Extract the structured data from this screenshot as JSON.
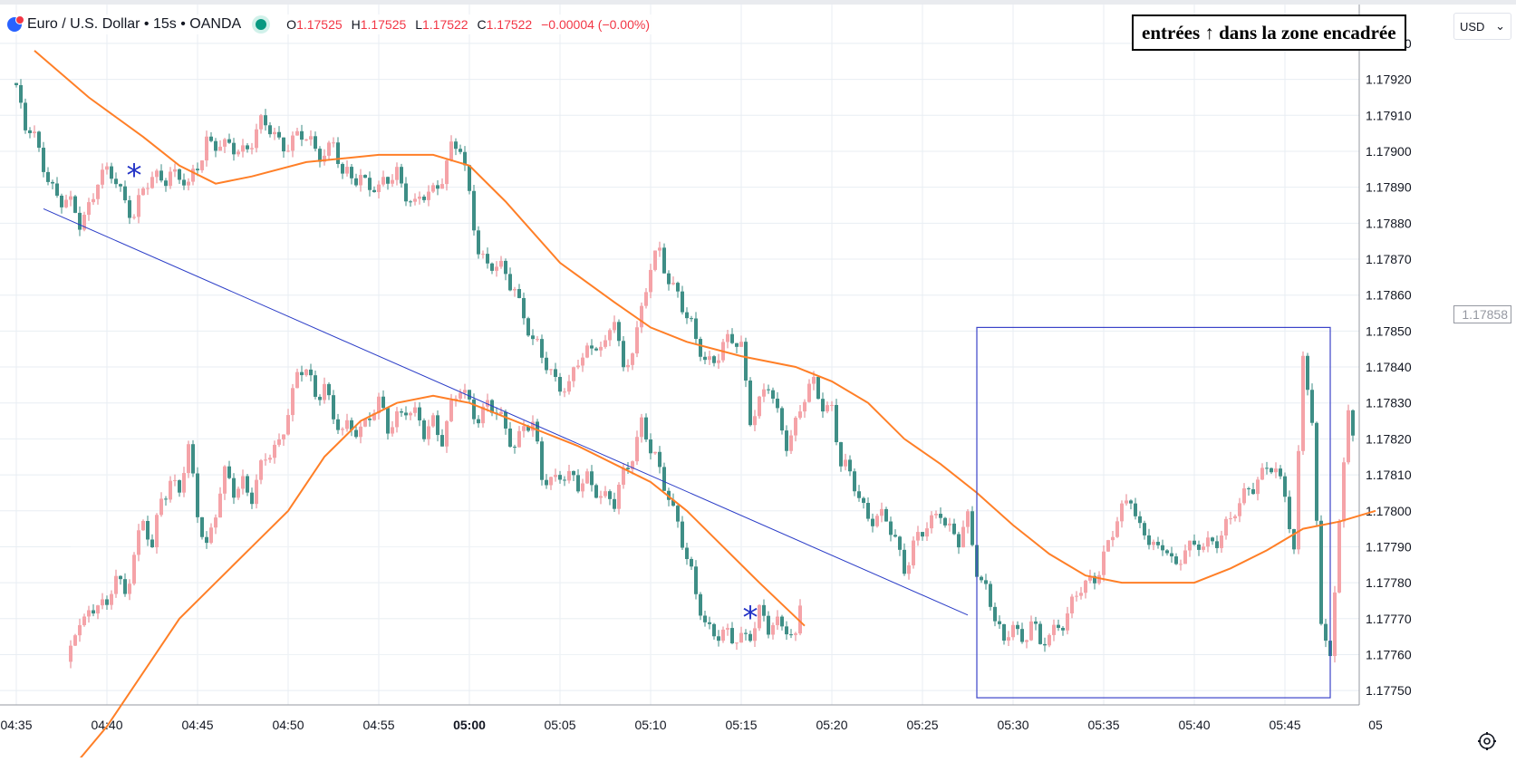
{
  "legend": {
    "symbol": "Euro / U.S. Dollar • 15s • OANDA",
    "o_label": "O",
    "o": "1.17525",
    "h_label": "H",
    "h": "1.17525",
    "l_label": "L",
    "l": "1.17522",
    "c_label": "C",
    "c": "1.17522",
    "change": "−0.00004 (−0.00%)"
  },
  "annotation": {
    "text": "entrées ↑ dans la zone encadrée"
  },
  "price_scale": {
    "currency": "USD",
    "last_price": "1.17858"
  },
  "colors": {
    "up": "#f5a3a8",
    "up_wick": "#e57f88",
    "down": "#3e8e86",
    "ma": "#ff7f27",
    "trendline": "#2a3cc7",
    "box": "#3b44c9",
    "marker": "#2232c6",
    "grid": "#e8eef3",
    "axis_text": "#131722"
  },
  "chart_data": {
    "type": "candlestick",
    "instrument": "Euro / U.S. Dollar",
    "interval": "15s",
    "source": "OANDA",
    "x_ticks": [
      "04:35",
      "04:40",
      "04:45",
      "04:50",
      "04:55",
      "05:00",
      "05:05",
      "05:10",
      "05:15",
      "05:20",
      "05:25",
      "05:30",
      "05:35",
      "05:40",
      "05:45",
      "05"
    ],
    "x_bold": [
      "05:00"
    ],
    "y_ticks": [
      "1.17750",
      "1.17760",
      "1.17770",
      "1.17780",
      "1.17790",
      "1.17800",
      "1.17810",
      "1.17820",
      "1.17830",
      "1.17840",
      "1.17850",
      "1.17860",
      "1.17870",
      "1.17880",
      "1.17890",
      "1.17900",
      "1.17910",
      "1.17920",
      "1.17930"
    ],
    "ylim": [
      1.17745,
      1.17932
    ],
    "x_time_range": [
      "04:35",
      "05:50"
    ],
    "main_close_path": [
      [
        "04:35:00",
        1.17919
      ],
      [
        "04:35:30",
        1.17906
      ],
      [
        "04:36:30",
        1.17897
      ],
      [
        "04:37:30",
        1.17886
      ],
      [
        "04:38:30",
        1.1788
      ],
      [
        "04:39:30",
        1.17893
      ],
      [
        "04:40:30",
        1.17891
      ],
      [
        "04:41:30",
        1.17884
      ],
      [
        "04:42:30",
        1.17891
      ],
      [
        "04:43:30",
        1.17896
      ],
      [
        "04:44:30",
        1.17888
      ],
      [
        "04:45:30",
        1.17905
      ],
      [
        "04:46:30",
        1.17899
      ],
      [
        "04:47:30",
        1.17902
      ],
      [
        "04:48:30",
        1.17906
      ],
      [
        "04:49:30",
        1.17904
      ],
      [
        "04:50:30",
        1.17903
      ],
      [
        "04:51:30",
        1.17901
      ],
      [
        "04:52:30",
        1.17902
      ],
      [
        "04:53:00",
        1.17891
      ],
      [
        "04:54:00",
        1.17895
      ],
      [
        "04:55:00",
        1.17887
      ],
      [
        "04:56:00",
        1.17896
      ],
      [
        "04:57:00",
        1.17883
      ],
      [
        "04:58:00",
        1.1789
      ],
      [
        "04:59:00",
        1.179
      ],
      [
        "04:59:30",
        1.17899
      ],
      [
        "05:00:00",
        1.17888
      ],
      [
        "05:00:30",
        1.17875
      ],
      [
        "05:01:00",
        1.17868
      ],
      [
        "05:01:30",
        1.17866
      ],
      [
        "05:02:30",
        1.17864
      ],
      [
        "05:03:00",
        1.17855
      ],
      [
        "05:03:30",
        1.17845
      ],
      [
        "05:04:00",
        1.17842
      ],
      [
        "05:04:30",
        1.1784
      ],
      [
        "05:05:30",
        1.17833
      ],
      [
        "05:06:00",
        1.1784
      ],
      [
        "05:06:30",
        1.17845
      ],
      [
        "05:07:00",
        1.17849
      ],
      [
        "05:07:30",
        1.17845
      ],
      [
        "05:08:00",
        1.17852
      ],
      [
        "05:08:30",
        1.17838
      ],
      [
        "05:09:00",
        1.17848
      ],
      [
        "05:09:30",
        1.17856
      ],
      [
        "05:10:00",
        1.17866
      ],
      [
        "05:10:30",
        1.17871
      ],
      [
        "05:11:00",
        1.17866
      ],
      [
        "05:11:30",
        1.17862
      ],
      [
        "05:12:00",
        1.17852
      ],
      [
        "05:12:30",
        1.17846
      ],
      [
        "05:13:00",
        1.17843
      ],
      [
        "05:14:00",
        1.17845
      ],
      [
        "05:15:00",
        1.17846
      ],
      [
        "05:15:30",
        1.17828
      ],
      [
        "05:16:00",
        1.1783
      ],
      [
        "05:16:30",
        1.17833
      ],
      [
        "05:17:00",
        1.17826
      ],
      [
        "05:17:30",
        1.17821
      ],
      [
        "05:18:00",
        1.17825
      ],
      [
        "05:18:30",
        1.1783
      ],
      [
        "05:19:00",
        1.17834
      ],
      [
        "05:19:30",
        1.17831
      ],
      [
        "05:20:00",
        1.1783
      ],
      [
        "05:20:30",
        1.17812
      ],
      [
        "05:21:00",
        1.17808
      ],
      [
        "05:21:30",
        1.17805
      ],
      [
        "05:22:00",
        1.178
      ],
      [
        "05:22:30",
        1.17798
      ],
      [
        "05:23:00",
        1.17795
      ],
      [
        "05:23:30",
        1.17792
      ],
      [
        "05:24:00",
        1.17786
      ],
      [
        "05:24:30",
        1.17791
      ],
      [
        "05:25:00",
        1.17792
      ],
      [
        "05:25:30",
        1.17796
      ],
      [
        "05:26:00",
        1.17802
      ],
      [
        "05:26:30",
        1.17796
      ],
      [
        "05:27:00",
        1.1779
      ],
      [
        "05:27:30",
        1.17796
      ],
      [
        "05:28:00",
        1.17785
      ],
      [
        "05:28:30",
        1.1778
      ],
      [
        "05:29:00",
        1.1777
      ],
      [
        "05:29:30",
        1.1776
      ],
      [
        "05:30:00",
        1.1777
      ],
      [
        "05:30:30",
        1.17765
      ],
      [
        "05:31:00",
        1.1777
      ],
      [
        "05:31:30",
        1.1776
      ],
      [
        "05:32:00",
        1.17765
      ],
      [
        "05:32:30",
        1.1777
      ],
      [
        "05:33:00",
        1.17772
      ],
      [
        "05:33:30",
        1.17775
      ],
      [
        "05:34:00",
        1.17778
      ],
      [
        "05:34:30",
        1.17783
      ],
      [
        "05:35:00",
        1.17789
      ],
      [
        "05:35:30",
        1.17793
      ],
      [
        "05:36:00",
        1.17798
      ],
      [
        "05:36:30",
        1.17805
      ],
      [
        "05:37:00",
        1.17797
      ],
      [
        "05:37:30",
        1.17792
      ],
      [
        "05:38:00",
        1.17786
      ],
      [
        "05:38:30",
        1.1779
      ],
      [
        "05:39:00",
        1.17786
      ],
      [
        "05:39:30",
        1.17791
      ],
      [
        "05:40:00",
        1.17787
      ],
      [
        "05:40:30",
        1.1779
      ],
      [
        "05:41:00",
        1.17793
      ],
      [
        "05:41:30",
        1.17795
      ],
      [
        "05:42:00",
        1.17796
      ],
      [
        "05:42:30",
        1.178
      ],
      [
        "05:43:00",
        1.17808
      ],
      [
        "05:43:30",
        1.1781
      ],
      [
        "05:44:00",
        1.17812
      ],
      [
        "05:44:30",
        1.17808
      ],
      [
        "05:45:00",
        1.17806
      ],
      [
        "05:45:30",
        1.1779
      ],
      [
        "05:46:00",
        1.17845
      ],
      [
        "05:46:30",
        1.1782
      ],
      [
        "05:47:00",
        1.1777
      ],
      [
        "05:47:30",
        1.1776
      ],
      [
        "05:48:00",
        1.178
      ],
      [
        "05:48:30",
        1.17824
      ],
      [
        "05:49:00",
        1.17815
      ],
      [
        "05:49:30",
        1.17828
      ]
    ],
    "main_ma_path": [
      [
        "04:36:00",
        1.17928
      ],
      [
        "04:39:00",
        1.17915
      ],
      [
        "04:42:00",
        1.17904
      ],
      [
        "04:44:00",
        1.17896
      ],
      [
        "04:46:00",
        1.17891
      ],
      [
        "04:48:00",
        1.17893
      ],
      [
        "04:51:00",
        1.17897
      ],
      [
        "04:55:00",
        1.17899
      ],
      [
        "04:58:00",
        1.17899
      ],
      [
        "05:00:00",
        1.17896
      ],
      [
        "05:02:00",
        1.17886
      ],
      [
        "05:05:00",
        1.17869
      ],
      [
        "05:08:00",
        1.17858
      ],
      [
        "05:10:00",
        1.17851
      ],
      [
        "05:12:00",
        1.17847
      ],
      [
        "05:15:00",
        1.17843
      ],
      [
        "05:18:00",
        1.1784
      ],
      [
        "05:20:00",
        1.17836
      ],
      [
        "05:22:00",
        1.1783
      ],
      [
        "05:24:00",
        1.1782
      ],
      [
        "05:26:00",
        1.17813
      ],
      [
        "05:28:00",
        1.17805
      ],
      [
        "05:30:00",
        1.17796
      ],
      [
        "05:32:00",
        1.17788
      ],
      [
        "05:34:00",
        1.17782
      ],
      [
        "05:36:00",
        1.1778
      ],
      [
        "05:38:00",
        1.1778
      ],
      [
        "05:40:00",
        1.1778
      ],
      [
        "05:42:00",
        1.17784
      ],
      [
        "05:44:00",
        1.17789
      ],
      [
        "05:46:00",
        1.17795
      ],
      [
        "05:48:00",
        1.17797
      ],
      [
        "05:50:00",
        1.178
      ]
    ],
    "overlay_snapshot": {
      "description_none": "",
      "x_range": [
        "04:38:00",
        "05:18:30"
      ],
      "close_path": [
        [
          "04:38:00",
          1.17758
        ],
        [
          "04:38:30",
          1.1777
        ],
        [
          "04:39:30",
          1.17776
        ],
        [
          "04:40:00",
          1.1777
        ],
        [
          "04:40:30",
          1.17782
        ],
        [
          "04:41:00",
          1.17778
        ],
        [
          "04:41:30",
          1.1779
        ],
        [
          "04:42:00",
          1.17795
        ],
        [
          "04:42:30",
          1.17788
        ],
        [
          "04:43:00",
          1.17805
        ],
        [
          "04:43:30",
          1.1781
        ],
        [
          "04:44:00",
          1.17805
        ],
        [
          "04:44:30",
          1.17815
        ],
        [
          "04:45:00",
          1.178
        ],
        [
          "04:45:30",
          1.17792
        ],
        [
          "04:46:00",
          1.178
        ],
        [
          "04:46:30",
          1.17808
        ],
        [
          "04:47:00",
          1.17805
        ],
        [
          "04:47:30",
          1.1781
        ],
        [
          "04:48:00",
          1.17805
        ],
        [
          "04:48:30",
          1.1781
        ],
        [
          "04:49:00",
          1.17815
        ],
        [
          "04:49:30",
          1.1782
        ],
        [
          "04:50:00",
          1.1783
        ],
        [
          "04:50:30",
          1.17836
        ],
        [
          "04:51:00",
          1.17838
        ],
        [
          "04:51:30",
          1.17832
        ],
        [
          "04:52:00",
          1.17838
        ],
        [
          "04:52:30",
          1.17825
        ],
        [
          "04:53:00",
          1.1782
        ],
        [
          "04:53:30",
          1.17823
        ],
        [
          "04:54:00",
          1.17825
        ],
        [
          "04:54:30",
          1.17827
        ],
        [
          "04:55:00",
          1.17828
        ],
        [
          "04:55:30",
          1.17822
        ],
        [
          "04:56:00",
          1.17828
        ],
        [
          "04:56:30",
          1.1783
        ],
        [
          "04:57:00",
          1.17825
        ],
        [
          "04:57:30",
          1.1782
        ],
        [
          "04:58:00",
          1.17826
        ],
        [
          "04:58:30",
          1.17822
        ],
        [
          "04:59:00",
          1.17828
        ],
        [
          "04:59:30",
          1.17832
        ],
        [
          "05:00:00",
          1.1783
        ],
        [
          "05:00:30",
          1.17828
        ],
        [
          "05:01:00",
          1.1783
        ],
        [
          "05:01:30",
          1.17825
        ],
        [
          "05:02:00",
          1.17822
        ],
        [
          "05:02:30",
          1.1782
        ],
        [
          "05:03:00",
          1.17825
        ],
        [
          "05:03:30",
          1.17822
        ],
        [
          "05:04:00",
          1.17808
        ],
        [
          "05:04:30",
          1.1781
        ],
        [
          "05:05:00",
          1.17812
        ],
        [
          "05:05:30",
          1.17808
        ],
        [
          "05:06:00",
          1.17805
        ],
        [
          "05:06:30",
          1.1781
        ],
        [
          "05:07:00",
          1.17808
        ],
        [
          "05:07:30",
          1.17803
        ],
        [
          "05:08:00",
          1.178
        ],
        [
          "05:08:30",
          1.1781
        ],
        [
          "05:09:00",
          1.17818
        ],
        [
          "05:09:30",
          1.17825
        ],
        [
          "05:10:00",
          1.17815
        ],
        [
          "05:10:30",
          1.1781
        ],
        [
          "05:11:00",
          1.17806
        ],
        [
          "05:11:30",
          1.17798
        ],
        [
          "05:12:00",
          1.17785
        ],
        [
          "05:12:30",
          1.17775
        ],
        [
          "05:13:00",
          1.1777
        ],
        [
          "05:13:30",
          1.17768
        ],
        [
          "05:14:00",
          1.17765
        ],
        [
          "05:14:30",
          1.17762
        ],
        [
          "05:15:00",
          1.17765
        ],
        [
          "05:15:30",
          1.17768
        ],
        [
          "05:16:00",
          1.17772
        ],
        [
          "05:16:30",
          1.17765
        ],
        [
          "05:17:00",
          1.17768
        ],
        [
          "05:17:30",
          1.1777
        ],
        [
          "05:18:00",
          1.17765
        ],
        [
          "05:18:30",
          1.17782
        ]
      ],
      "ma_path": [
        [
          "04:38:00",
          1.17728
        ],
        [
          "04:40:00",
          1.1774
        ],
        [
          "04:42:00",
          1.17755
        ],
        [
          "04:44:00",
          1.1777
        ],
        [
          "04:46:00",
          1.1778
        ],
        [
          "04:48:00",
          1.1779
        ],
        [
          "04:50:00",
          1.178
        ],
        [
          "04:52:00",
          1.17815
        ],
        [
          "04:54:00",
          1.17825
        ],
        [
          "04:56:00",
          1.1783
        ],
        [
          "04:58:00",
          1.17832
        ],
        [
          "05:00:00",
          1.1783
        ],
        [
          "05:02:00",
          1.17826
        ],
        [
          "05:04:00",
          1.17822
        ],
        [
          "05:06:00",
          1.17818
        ],
        [
          "05:08:00",
          1.17813
        ],
        [
          "05:10:00",
          1.17808
        ],
        [
          "05:12:00",
          1.178
        ],
        [
          "05:14:00",
          1.1779
        ],
        [
          "05:16:00",
          1.1778
        ],
        [
          "05:18:30",
          1.17768
        ]
      ]
    },
    "trendline": [
      [
        "04:36:30",
        1.17884
      ],
      [
        "05:27:30",
        1.17771
      ]
    ],
    "zone_box": {
      "x": [
        "05:28:00",
        "05:47:30"
      ],
      "y": [
        1.17748,
        1.17851
      ]
    },
    "markers": [
      {
        "symbol": "*",
        "time": "04:41:30",
        "price": 1.17894
      },
      {
        "symbol": "*",
        "time": "05:15:30",
        "price": 1.17771
      }
    ],
    "legend_pos": "top-left"
  }
}
